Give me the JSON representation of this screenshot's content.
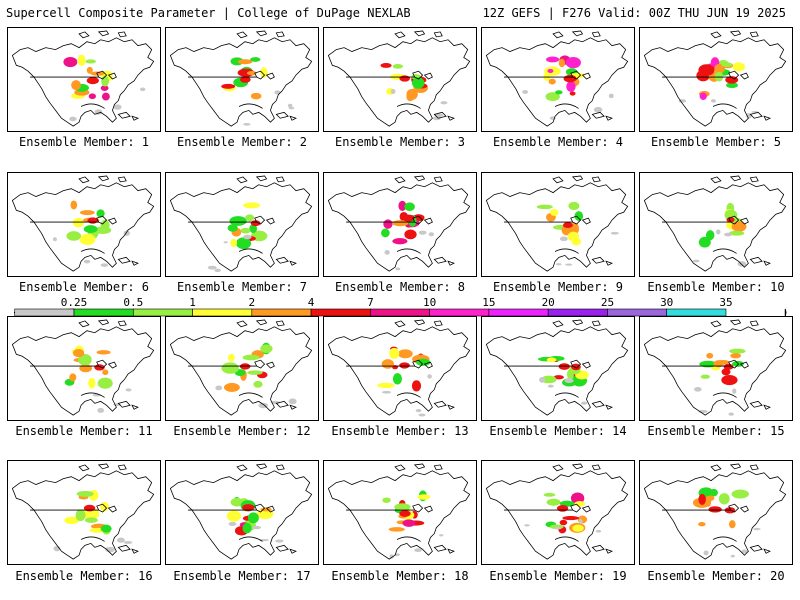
{
  "header": {
    "title": "Supercell Composite Parameter | College of DuPage NEXLAB",
    "run_info": "12Z GEFS | F276 Valid: 00Z THU JUN 19 2025"
  },
  "legend": {
    "ticks": [
      "0.25",
      "0.5",
      "1",
      "2",
      "4",
      "7",
      "10",
      "15",
      "20",
      "25",
      "30",
      "35"
    ],
    "colors": [
      "#c8c8c8",
      "#22dd22",
      "#99ee44",
      "#ffff33",
      "#ff9922",
      "#ee1111",
      "#ee1188",
      "#ff22cc",
      "#ee22ff",
      "#9922ee",
      "#9966dd",
      "#33dddd"
    ]
  },
  "members": [
    {
      "label": "Ensemble Member: 1",
      "activity": 0.8
    },
    {
      "label": "Ensemble Member: 2",
      "activity": 0.6
    },
    {
      "label": "Ensemble Member: 3",
      "activity": 0.6
    },
    {
      "label": "Ensemble Member: 4",
      "activity": 0.9
    },
    {
      "label": "Ensemble Member: 5",
      "activity": 0.9
    },
    {
      "label": "Ensemble Member: 6",
      "activity": 0.6
    },
    {
      "label": "Ensemble Member: 7",
      "activity": 0.5
    },
    {
      "label": "Ensemble Member: 8",
      "activity": 0.8
    },
    {
      "label": "Ensemble Member: 9",
      "activity": 0.5
    },
    {
      "label": "Ensemble Member: 10",
      "activity": 0.3
    },
    {
      "label": "Ensemble Member: 11",
      "activity": 0.6
    },
    {
      "label": "Ensemble Member: 12",
      "activity": 0.6
    },
    {
      "label": "Ensemble Member: 13",
      "activity": 0.6
    },
    {
      "label": "Ensemble Member: 14",
      "activity": 0.7
    },
    {
      "label": "Ensemble Member: 15",
      "activity": 0.5
    },
    {
      "label": "Ensemble Member: 16",
      "activity": 0.7
    },
    {
      "label": "Ensemble Member: 17",
      "activity": 0.8
    },
    {
      "label": "Ensemble Member: 18",
      "activity": 0.7
    },
    {
      "label": "Ensemble Member: 19",
      "activity": 0.7
    },
    {
      "label": "Ensemble Member: 20",
      "activity": 0.6
    }
  ]
}
